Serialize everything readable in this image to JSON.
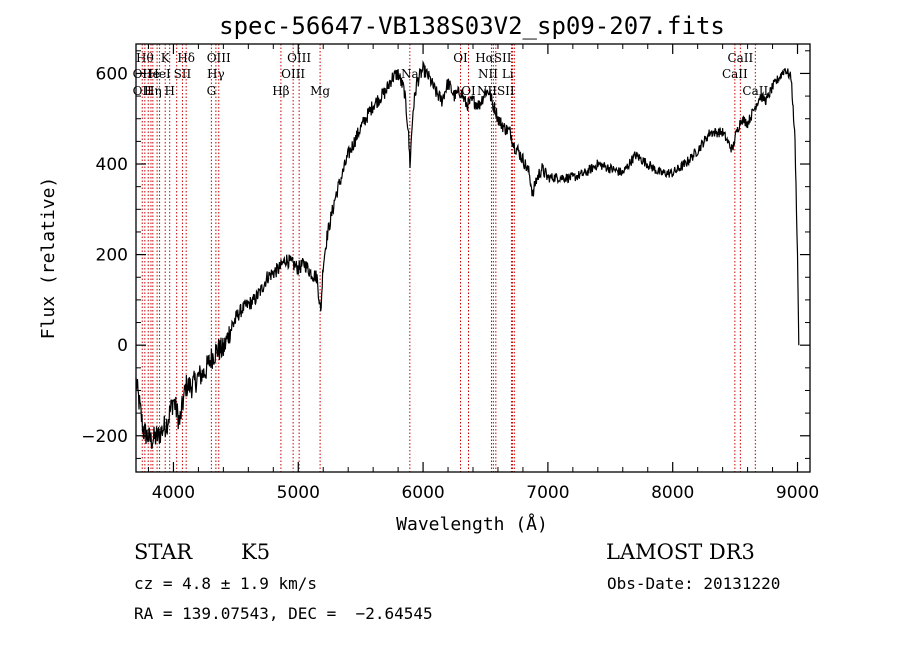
{
  "chart_data": {
    "type": "line",
    "title": "spec-56647-VB138S03V2_sp09-207.fits",
    "xlabel": "Wavelength (Å)",
    "ylabel": "Flux (relative)",
    "xlim": [
      3700,
      9100
    ],
    "ylim": [
      -280,
      665
    ],
    "x_ticks": [
      4000,
      5000,
      6000,
      7000,
      8000,
      9000
    ],
    "y_ticks": [
      -200,
      0,
      200,
      400,
      600
    ],
    "x_tick_labels": [
      "4000",
      "5000",
      "6000",
      "7000",
      "8000",
      "9000"
    ],
    "y_tick_labels": [
      "−200",
      "0",
      "200",
      "400",
      "600"
    ],
    "series": [
      {
        "x": [
          3700,
          3760,
          3820,
          3880,
          3950,
          4000,
          4050,
          4100,
          4150,
          4200,
          4250,
          4300,
          4350,
          4400,
          4450,
          4500,
          4550,
          4600,
          4650,
          4700,
          4750,
          4800,
          4850,
          4900,
          4950,
          5000,
          5050,
          5100,
          5150,
          5180,
          5200,
          5230,
          5300,
          5400,
          5500,
          5600,
          5700,
          5750,
          5800,
          5850,
          5880,
          5895,
          5920,
          5950,
          6000,
          6050,
          6100,
          6150,
          6200,
          6250,
          6300,
          6350,
          6400,
          6450,
          6500,
          6530,
          6560,
          6580,
          6600,
          6650,
          6700,
          6730,
          6760,
          6800,
          6850,
          6880,
          6900,
          6950,
          7000,
          7100,
          7200,
          7300,
          7400,
          7500,
          7600,
          7700,
          7800,
          7900,
          8000,
          8100,
          8200,
          8300,
          8400,
          8480,
          8500,
          8550,
          8600,
          8650,
          8700,
          8750,
          8800,
          8850,
          8900,
          8950,
          8980,
          9000,
          9010
        ],
        "y": [
          -80,
          -190,
          -210,
          -200,
          -170,
          -120,
          -170,
          -90,
          -90,
          -70,
          -60,
          -30,
          -10,
          -10,
          30,
          60,
          80,
          90,
          100,
          120,
          150,
          160,
          170,
          190,
          180,
          170,
          180,
          160,
          150,
          70,
          180,
          240,
          330,
          420,
          480,
          530,
          560,
          590,
          600,
          560,
          480,
          400,
          520,
          580,
          610,
          590,
          560,
          540,
          580,
          550,
          560,
          530,
          540,
          530,
          560,
          560,
          530,
          520,
          500,
          480,
          470,
          440,
          430,
          410,
          380,
          330,
          360,
          390,
          370,
          370,
          370,
          380,
          400,
          390,
          380,
          420,
          400,
          380,
          380,
          400,
          430,
          470,
          470,
          430,
          460,
          500,
          490,
          520,
          550,
          540,
          570,
          590,
          610,
          590,
          450,
          200,
          0
        ]
      }
    ],
    "lines": [
      {
        "wavelength": 3750,
        "label": "OII"
      },
      {
        "wavelength": 3771,
        "label": "Hθ"
      },
      {
        "wavelength": 3798,
        "label": "Hη"
      },
      {
        "wavelength": 3820,
        "label": "HeI"
      },
      {
        "wavelength": 3835,
        "label": "Hη"
      },
      {
        "wavelength": 3869,
        "label": "NeIII"
      },
      {
        "wavelength": 3889,
        "label": "HeI"
      },
      {
        "wavelength": 3934,
        "label": "K"
      },
      {
        "wavelength": 3970,
        "label": "H"
      },
      {
        "wavelength": 4026,
        "label": "HeI"
      },
      {
        "wavelength": 4072,
        "label": "SII"
      },
      {
        "wavelength": 4102,
        "label": "Hδ"
      },
      {
        "wavelength": 4304,
        "label": "G"
      },
      {
        "wavelength": 4340,
        "label": "Hγ"
      },
      {
        "wavelength": 4363,
        "label": "OIII"
      },
      {
        "wavelength": 4861,
        "label": "Hβ"
      },
      {
        "wavelength": 4959,
        "label": "OIII"
      },
      {
        "wavelength": 5007,
        "label": "OIII"
      },
      {
        "wavelength": 5175,
        "label": "Mg"
      },
      {
        "wavelength": 5894,
        "label": "Na"
      },
      {
        "wavelength": 6300,
        "label": "OI"
      },
      {
        "wavelength": 6364,
        "label": "OI"
      },
      {
        "wavelength": 6548,
        "label": "NII"
      },
      {
        "wavelength": 6563,
        "label": "Hα"
      },
      {
        "wavelength": 6583,
        "label": "NII"
      },
      {
        "wavelength": 6708,
        "label": "Li"
      },
      {
        "wavelength": 6716,
        "label": "SII"
      },
      {
        "wavelength": 6731,
        "label": "SII"
      },
      {
        "wavelength": 8498,
        "label": "CaII"
      },
      {
        "wavelength": 8542,
        "label": "CaII"
      },
      {
        "wavelength": 8662,
        "label": "CaII"
      }
    ],
    "line_labels": [
      {
        "text": "Hθ",
        "wavelength": 3771,
        "row": 0
      },
      {
        "text": "K",
        "wavelength": 3934,
        "row": 0
      },
      {
        "text": "Hδ",
        "wavelength": 4102,
        "row": 0
      },
      {
        "text": "OIII",
        "wavelength": 4363,
        "row": 0
      },
      {
        "text": "OIII",
        "wavelength": 5007,
        "row": 0
      },
      {
        "text": "OI",
        "wavelength": 6300,
        "row": 0
      },
      {
        "text": "HαSII",
        "wavelength": 6563,
        "row": 0
      },
      {
        "text": "CaII",
        "wavelength": 8542,
        "row": 0
      },
      {
        "text": "OII",
        "wavelength": 3750,
        "row": 1
      },
      {
        "text": "He",
        "wavelength": 3820,
        "row": 1
      },
      {
        "text": "HeI",
        "wavelength": 3889,
        "row": 1
      },
      {
        "text": "SII",
        "wavelength": 4072,
        "row": 1
      },
      {
        "text": "Hγ",
        "wavelength": 4340,
        "row": 1
      },
      {
        "text": "OIII",
        "wavelength": 4959,
        "row": 1
      },
      {
        "text": "Na",
        "wavelength": 5894,
        "row": 1
      },
      {
        "text": "NII Li",
        "wavelength": 6583,
        "row": 1
      },
      {
        "text": "CaII",
        "wavelength": 8498,
        "row": 1
      },
      {
        "text": "OII",
        "wavelength": 3750,
        "row": 2
      },
      {
        "text": "Hη",
        "wavelength": 3835,
        "row": 2
      },
      {
        "text": "H",
        "wavelength": 3970,
        "row": 2
      },
      {
        "text": "G",
        "wavelength": 4304,
        "row": 2
      },
      {
        "text": "Hβ",
        "wavelength": 4861,
        "row": 2
      },
      {
        "text": "Mg",
        "wavelength": 5175,
        "row": 2
      },
      {
        "text": "OI",
        "wavelength": 6364,
        "row": 2
      },
      {
        "text": "NIISII",
        "wavelength": 6583,
        "row": 2
      },
      {
        "text": "CaII",
        "wavelength": 8662,
        "row": 2
      }
    ],
    "line_color": "#cc0000",
    "spectrum_color": "#000000"
  },
  "info": {
    "object_class": "STAR",
    "subclass": "K5",
    "survey": "LAMOST DR3",
    "cz": "cz = 4.8 ± 1.9 km/s",
    "obs_date": "Obs-Date: 20131220",
    "coords": "RA = 139.07543, DEC =  −2.64545"
  }
}
